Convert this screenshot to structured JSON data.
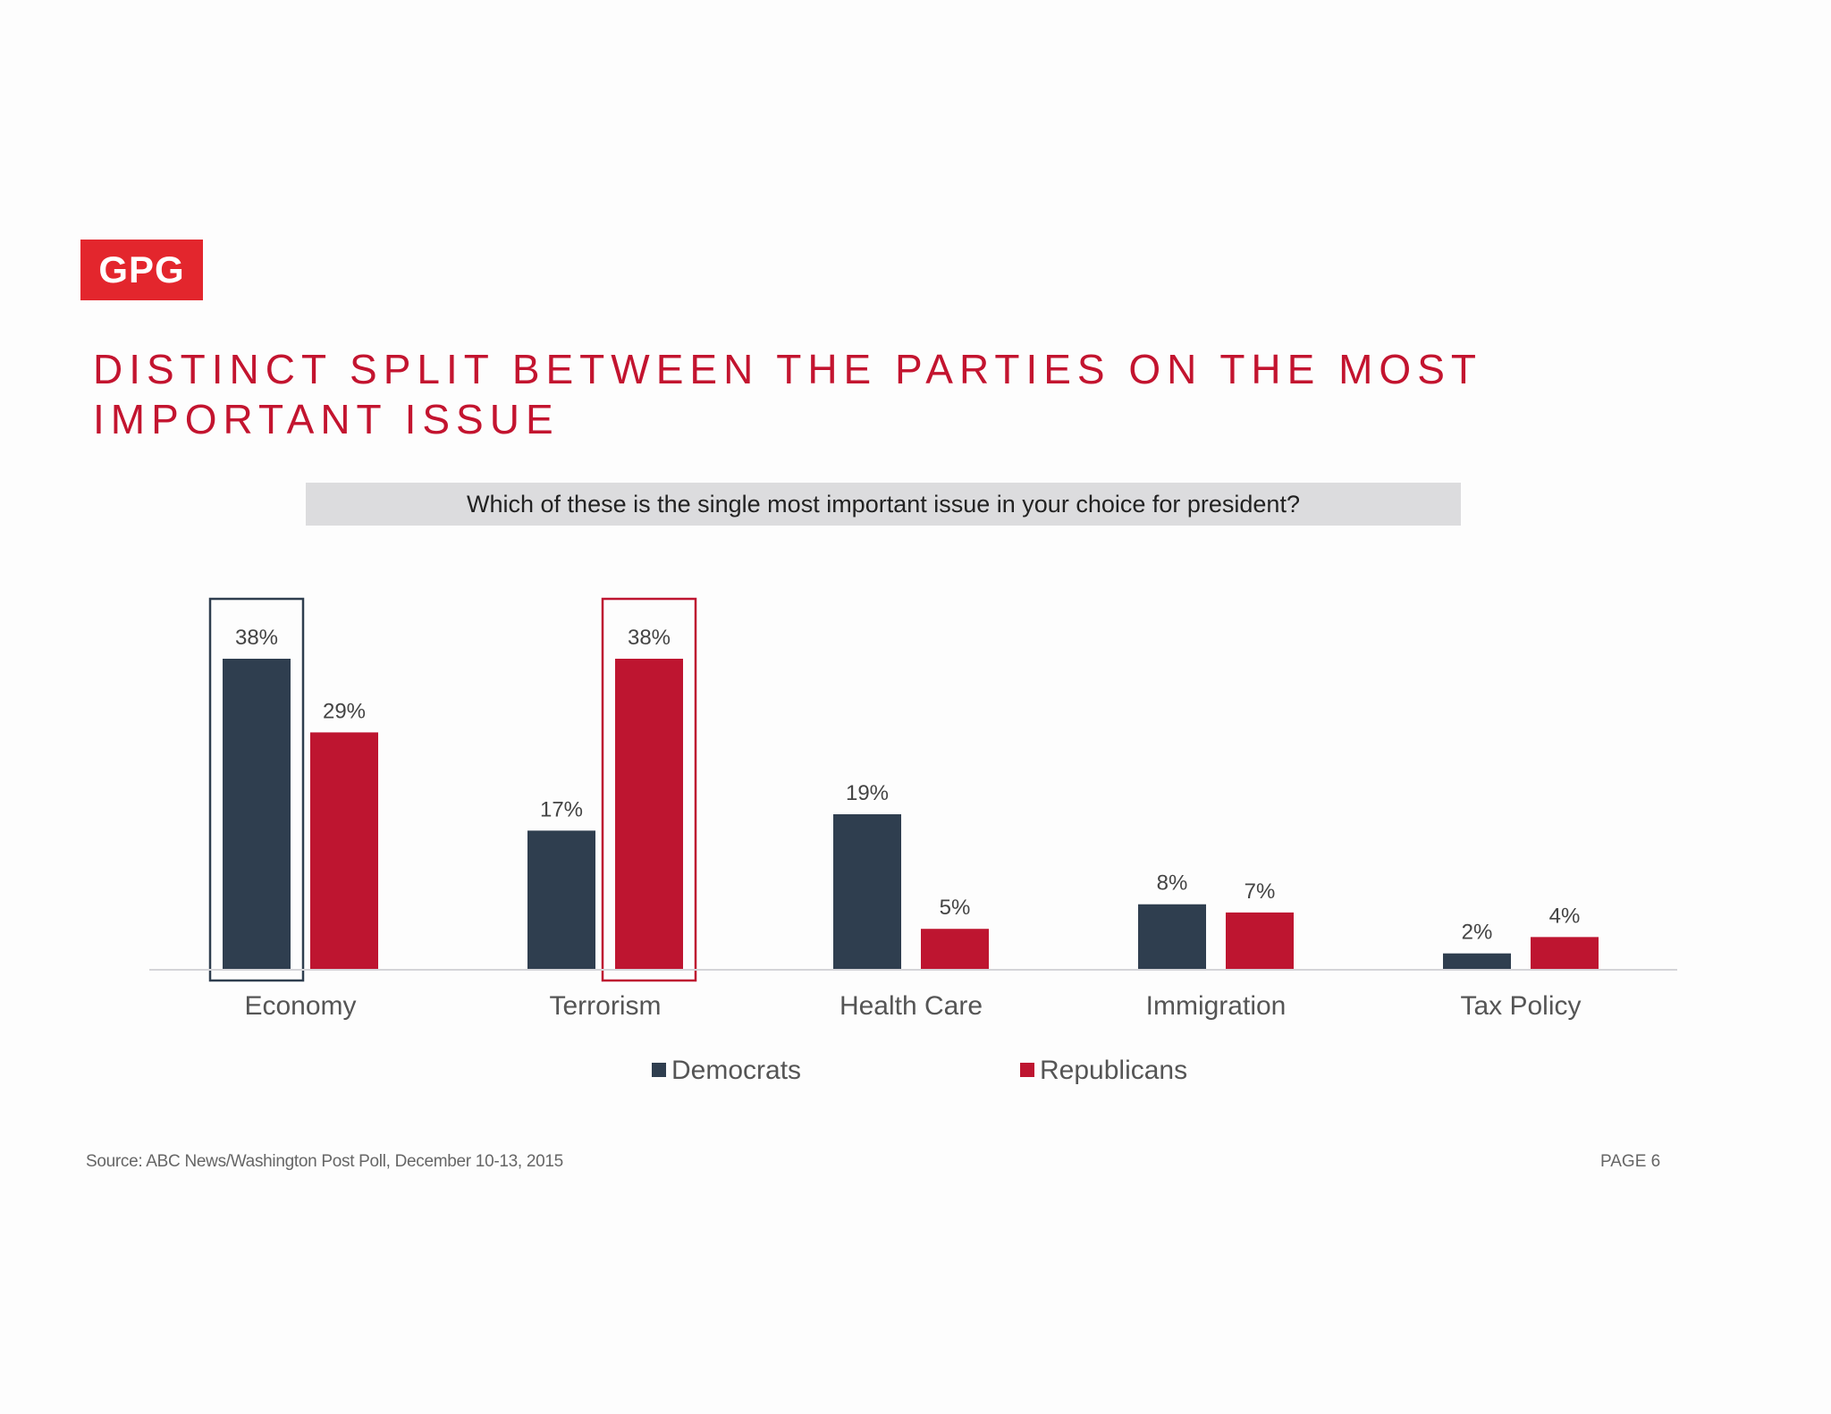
{
  "logo": {
    "text": "GPG",
    "color": "#e3262d"
  },
  "title": "DISTINCT SPLIT BETWEEN THE PARTIES ON THE MOST IMPORTANT ISSUE",
  "question": "Which of these is the single most important issue in your choice for president?",
  "chart_data": {
    "type": "bar",
    "categories": [
      "Economy",
      "Terrorism",
      "Health Care",
      "Immigration",
      "Tax Policy"
    ],
    "series": [
      {
        "name": "Democrats",
        "color": "#2f3e4f",
        "values": [
          38,
          17,
          19,
          8,
          2
        ],
        "labels": [
          "38%",
          "17%",
          "19%",
          "8%",
          "2%"
        ]
      },
      {
        "name": "Republicans",
        "color": "#be1530",
        "values": [
          29,
          38,
          5,
          7,
          4
        ],
        "labels": [
          "29%",
          "38%",
          "5%",
          "7%",
          "4%"
        ]
      }
    ],
    "unit": "%",
    "ylim": [
      0,
      38
    ],
    "legend": "bottom-center",
    "grid": false,
    "highlights": [
      {
        "category": "Economy",
        "series": "Democrats",
        "color": "#2f3e4f"
      },
      {
        "category": "Terrorism",
        "series": "Republicans",
        "color": "#be1530"
      }
    ]
  },
  "source": "Source: ABC News/Washington Post Poll, December 10-13, 2015",
  "page": "PAGE 6"
}
